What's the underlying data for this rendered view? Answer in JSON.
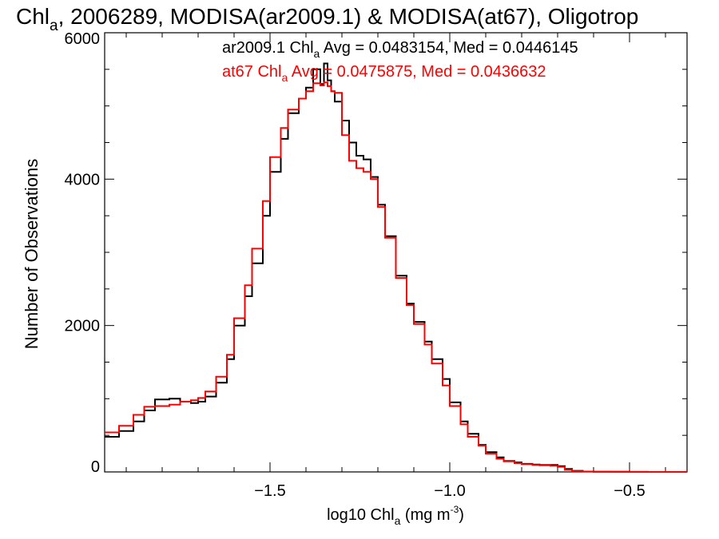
{
  "chart_data": {
    "type": "line",
    "title": {
      "pre": "Chl",
      "sub": "a",
      "post": ", 2006289, MODISA(ar2009.1) & MODISA(at67), Oligotrop"
    },
    "xlabel": {
      "pre": "log10 Chl",
      "sub": "a",
      "mid": " (mg m",
      "sup": "-3",
      "post": ")"
    },
    "ylabel": "Number of Observations",
    "xlim": [
      -1.96,
      -0.34
    ],
    "ylim": [
      0,
      6000
    ],
    "xticks": [
      {
        "value": -1.5,
        "label": "−1.5"
      },
      {
        "value": -1.0,
        "label": "−1.0"
      },
      {
        "value": -0.5,
        "label": "−0.5"
      }
    ],
    "yticks": [
      {
        "value": 0,
        "label": "0"
      },
      {
        "value": 2000,
        "label": "2000"
      },
      {
        "value": 4000,
        "label": "4000"
      },
      {
        "value": 6000,
        "label": "6000"
      }
    ],
    "legend": [
      {
        "color": "#000000",
        "pre": "ar2009.1 Chl",
        "sub": "a",
        "post": " Avg = 0.0483154, Med = 0.0446145"
      },
      {
        "color": "#ff0000",
        "pre": "at67 Chl",
        "sub": "a",
        "post": " Avg = 0.0475875, Med = 0.0436632"
      }
    ],
    "legend_position": "top-right",
    "series": [
      {
        "color": "#000000",
        "x": [
          -1.96,
          -1.92,
          -1.88,
          -1.85,
          -1.82,
          -1.78,
          -1.75,
          -1.72,
          -1.7,
          -1.68,
          -1.65,
          -1.62,
          -1.6,
          -1.57,
          -1.55,
          -1.52,
          -1.5,
          -1.47,
          -1.45,
          -1.42,
          -1.4,
          -1.38,
          -1.36,
          -1.35,
          -1.34,
          -1.33,
          -1.32,
          -1.3,
          -1.28,
          -1.26,
          -1.24,
          -1.22,
          -1.2,
          -1.18,
          -1.15,
          -1.12,
          -1.1,
          -1.07,
          -1.05,
          -1.02,
          -1.0,
          -0.97,
          -0.95,
          -0.92,
          -0.9,
          -0.87,
          -0.85,
          -0.82,
          -0.8,
          -0.77,
          -0.75,
          -0.72,
          -0.7,
          -0.68,
          -0.66,
          -0.63,
          -0.6,
          -0.55,
          -0.5,
          -0.45,
          -0.4,
          -0.34
        ],
        "y": [
          480,
          560,
          690,
          840,
          990,
          1000,
          960,
          940,
          960,
          1030,
          1220,
          1540,
          2000,
          2400,
          2850,
          3500,
          4100,
          4550,
          4900,
          5100,
          5250,
          5500,
          5300,
          5580,
          5350,
          5200,
          5060,
          4800,
          4500,
          4320,
          4270,
          4030,
          3650,
          3220,
          2680,
          2300,
          2050,
          1780,
          1540,
          1270,
          950,
          690,
          520,
          370,
          270,
          200,
          150,
          130,
          110,
          100,
          95,
          95,
          80,
          40,
          15,
          5,
          3,
          2,
          1,
          0,
          0,
          0
        ]
      },
      {
        "color": "#ff0000",
        "x": [
          -1.96,
          -1.92,
          -1.88,
          -1.85,
          -1.82,
          -1.78,
          -1.75,
          -1.72,
          -1.7,
          -1.68,
          -1.65,
          -1.62,
          -1.6,
          -1.57,
          -1.55,
          -1.52,
          -1.5,
          -1.47,
          -1.45,
          -1.42,
          -1.4,
          -1.38,
          -1.36,
          -1.35,
          -1.34,
          -1.33,
          -1.32,
          -1.3,
          -1.28,
          -1.26,
          -1.24,
          -1.22,
          -1.2,
          -1.18,
          -1.15,
          -1.12,
          -1.1,
          -1.07,
          -1.05,
          -1.02,
          -1.0,
          -0.97,
          -0.95,
          -0.92,
          -0.9,
          -0.87,
          -0.85,
          -0.82,
          -0.8,
          -0.77,
          -0.75,
          -0.72,
          -0.7,
          -0.68,
          -0.66,
          -0.63,
          -0.6,
          -0.55,
          -0.5,
          -0.45,
          -0.4,
          -0.34
        ],
        "y": [
          540,
          630,
          780,
          890,
          900,
          920,
          960,
          980,
          1010,
          1100,
          1300,
          1600,
          2100,
          2550,
          3050,
          3700,
          4300,
          4700,
          4950,
          5100,
          5200,
          5310,
          5280,
          5320,
          5270,
          5200,
          5180,
          4600,
          4250,
          4150,
          4100,
          4000,
          3620,
          3200,
          2650,
          2280,
          2020,
          1740,
          1480,
          1180,
          900,
          650,
          480,
          360,
          250,
          180,
          145,
          120,
          105,
          95,
          90,
          85,
          70,
          30,
          10,
          4,
          2,
          1,
          0,
          0,
          0,
          0
        ]
      }
    ],
    "grid": false
  }
}
